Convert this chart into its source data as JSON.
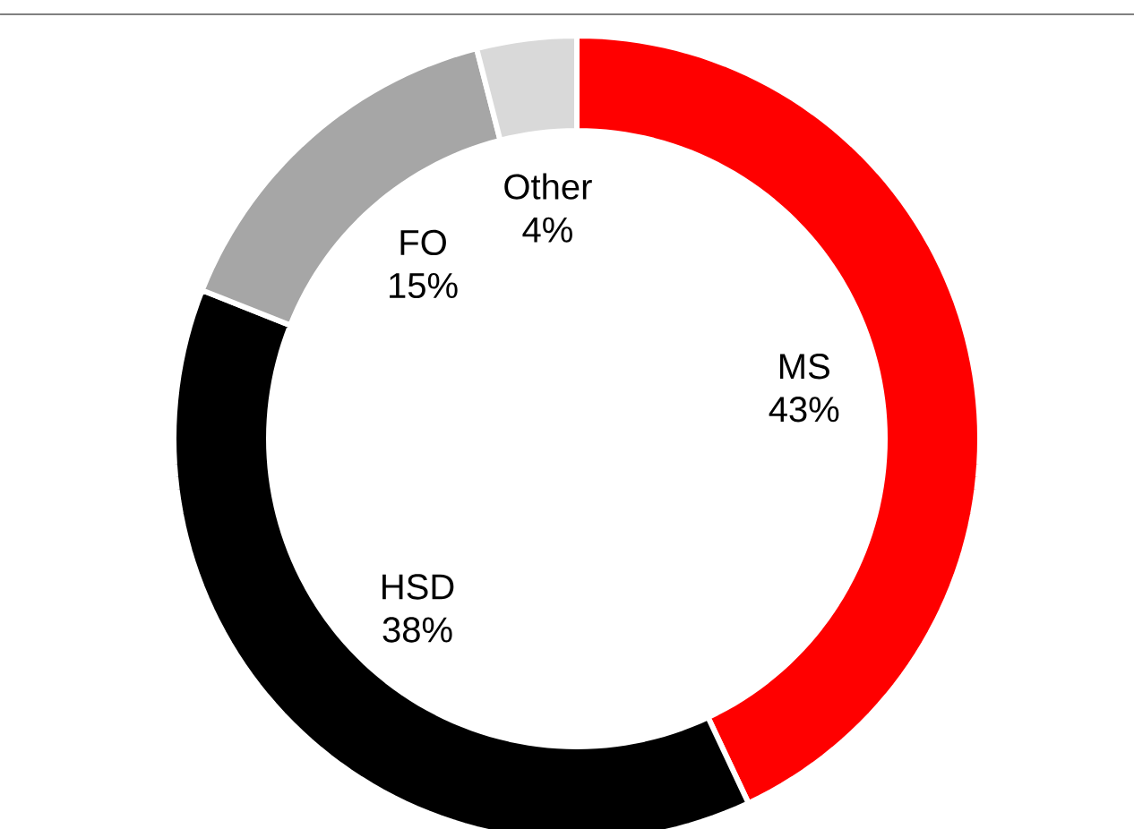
{
  "chart_data": {
    "type": "donut",
    "categories": [
      "MS",
      "HSD",
      "FO",
      "Other"
    ],
    "values": [
      43,
      38,
      15,
      4
    ],
    "colors": [
      "#ff0000",
      "#000000",
      "#a6a6a6",
      "#d9d9d9"
    ],
    "value_labels": [
      "43%",
      "38%",
      "15%",
      "4%"
    ]
  }
}
